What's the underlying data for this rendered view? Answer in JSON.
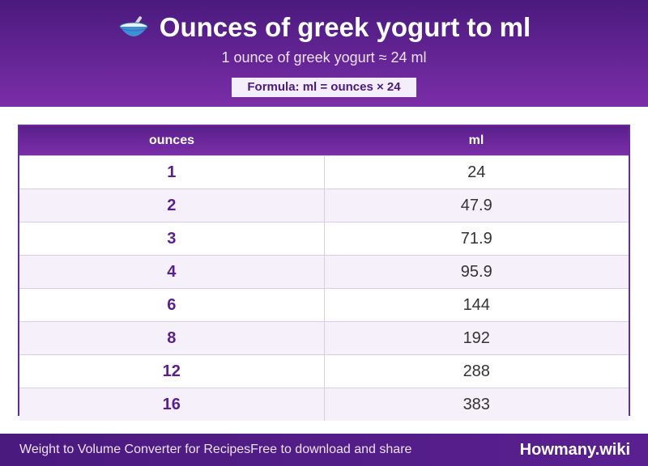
{
  "header": {
    "icon": "bowl-with-spoon-icon",
    "title": "Ounces of greek yogurt to ml",
    "subtitle": "1 ounce of greek yogurt ≈ 24 ml",
    "formula": "Formula: ml = ounces × 24"
  },
  "table": {
    "headers": [
      "ounces",
      "ml"
    ],
    "rows": [
      [
        "1",
        "24"
      ],
      [
        "2",
        "47.9"
      ],
      [
        "3",
        "71.9"
      ],
      [
        "4",
        "95.9"
      ],
      [
        "6",
        "144"
      ],
      [
        "8",
        "192"
      ],
      [
        "12",
        "288"
      ],
      [
        "16",
        "383"
      ]
    ]
  },
  "footer": {
    "left_text": "Weight to Volume Converter for Recipes",
    "middle_text": "Free to download and share",
    "brand": "Howmany.wiki"
  },
  "colors": {
    "primary": "#5a1f8c",
    "accent": "#7b2ea8",
    "row_alt": "#f5f0fa"
  }
}
